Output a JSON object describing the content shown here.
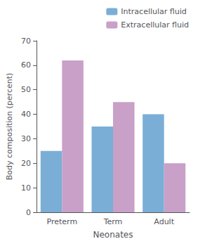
{
  "chart_data": {
    "type": "bar",
    "xlabel": "Neonates",
    "ylabel": "Body composition (percent)",
    "categories": [
      "Preterm",
      "Term",
      "Adult"
    ],
    "series": [
      {
        "name": "Intracellular fluid",
        "color": "#7aaed6",
        "values": [
          25,
          35,
          40
        ]
      },
      {
        "name": "Extracellular fluid",
        "color": "#c9a0c8",
        "values": [
          62,
          45,
          20
        ]
      }
    ],
    "ylim": [
      0,
      70
    ],
    "yticks": [
      0,
      10,
      20,
      30,
      40,
      50,
      60,
      70
    ],
    "grid": false,
    "legend": "upper right"
  }
}
